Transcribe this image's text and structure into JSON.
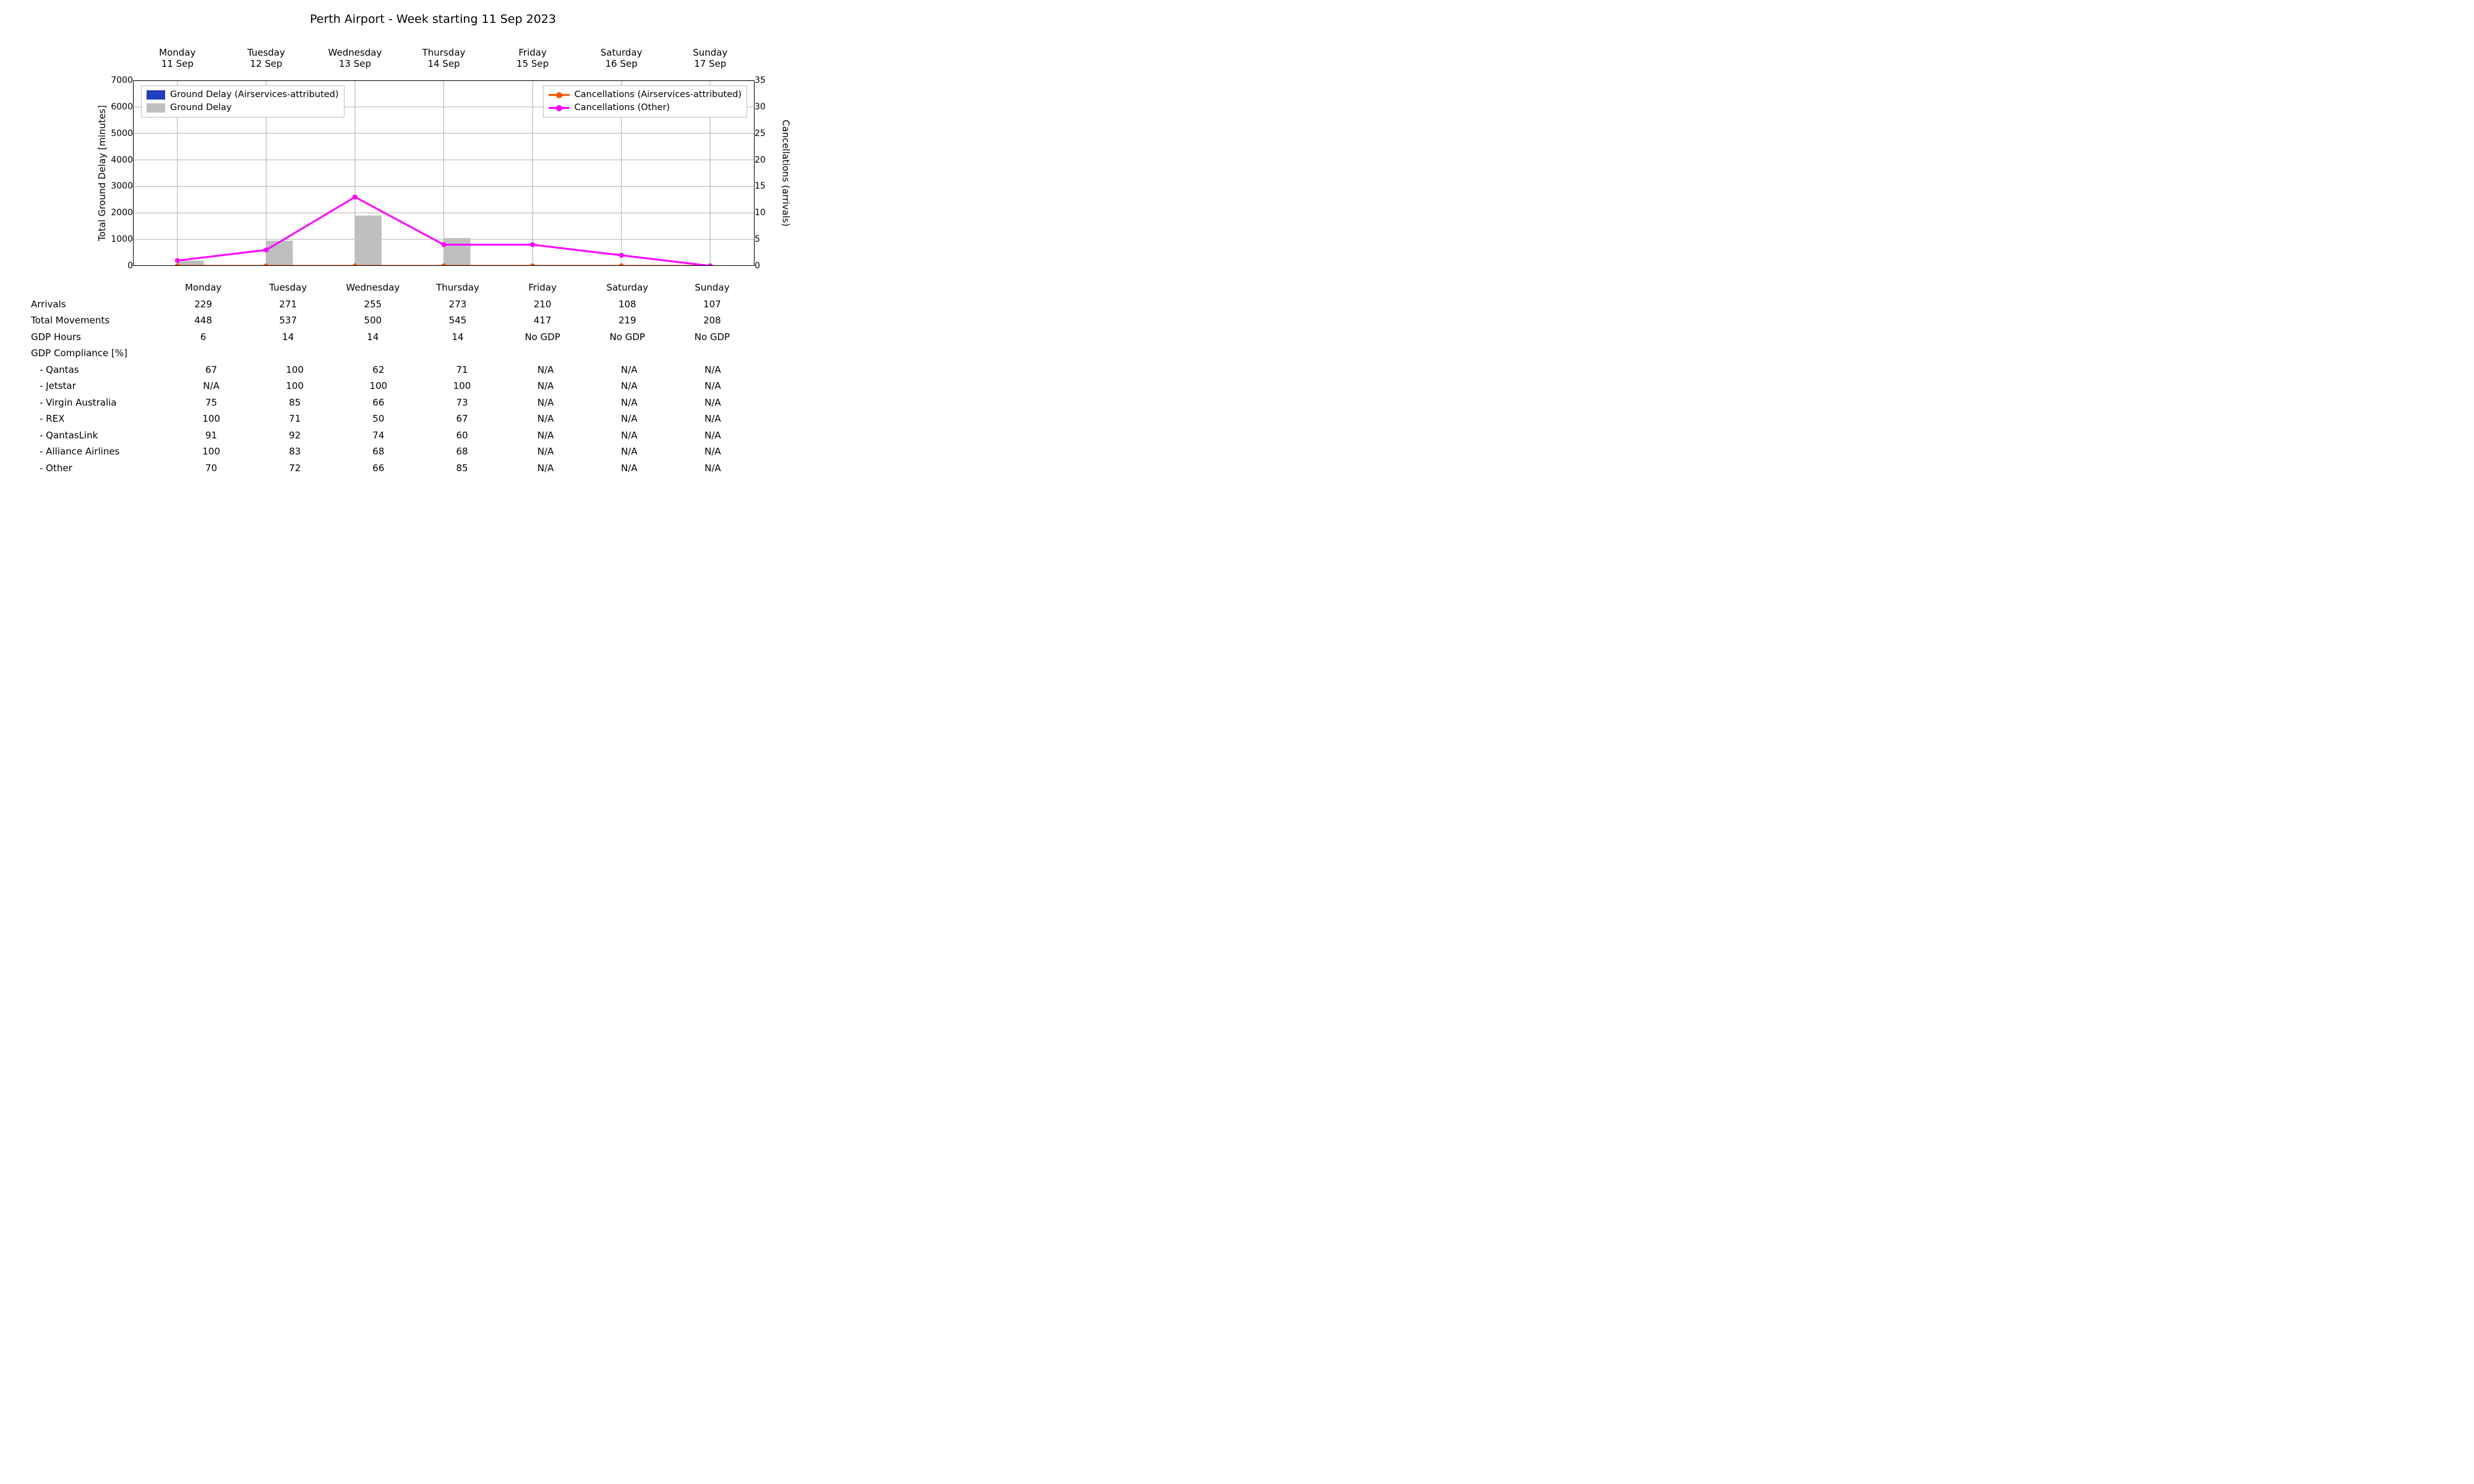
{
  "title": "Perth Airport - Week starting 11 Sep 2023",
  "chart": {
    "type": "bar+line-dual-axis",
    "background_color": "#ffffff",
    "grid_color": "#b0b0b0",
    "axis_color": "#000000",
    "days": [
      "Monday",
      "Tuesday",
      "Wednesday",
      "Thursday",
      "Friday",
      "Saturday",
      "Sunday"
    ],
    "top_dates_line2": [
      "11 Sep",
      "12 Sep",
      "13 Sep",
      "14 Sep",
      "15 Sep",
      "16 Sep",
      "17 Sep"
    ],
    "y_left": {
      "label": "Total Ground Delay [minutes]",
      "min": 0,
      "max": 7000,
      "ticks": [
        0,
        1000,
        2000,
        3000,
        4000,
        5000,
        6000,
        7000
      ],
      "fontsize": 15
    },
    "y_right": {
      "label": "Cancellations (arrivals)",
      "min": 0,
      "max": 35,
      "ticks": [
        0,
        5,
        10,
        15,
        20,
        25,
        30,
        35
      ],
      "fontsize": 15
    },
    "bars": {
      "ground_delay_airservices": {
        "label": "Ground Delay (Airservices-attributed)",
        "color": "#1f3fbf",
        "values": [
          0,
          0,
          0,
          0,
          0,
          0,
          0
        ]
      },
      "ground_delay": {
        "label": "Ground Delay",
        "color": "#bfbfbf",
        "values": [
          200,
          950,
          1900,
          1050,
          0,
          0,
          0
        ]
      },
      "bar_group_width": 0.6,
      "bar_gap": 0.0
    },
    "lines": {
      "cancel_airservices": {
        "label": "Cancellations (Airservices-attributed)",
        "color": "#ff5500",
        "linewidth": 3,
        "marker": "circle",
        "marker_size": 8,
        "values": [
          0,
          0,
          0,
          0,
          0,
          0,
          0
        ]
      },
      "cancel_other": {
        "label": "Cancellations (Other)",
        "color": "#ff00ff",
        "linewidth": 3,
        "marker": "circle",
        "marker_size": 8,
        "values": [
          1,
          3,
          13,
          4,
          4,
          2,
          0
        ]
      }
    }
  },
  "legend": {
    "left": [
      {
        "kind": "swatch",
        "color": "#1f3fbf",
        "label": "Ground Delay (Airservices-attributed)"
      },
      {
        "kind": "swatch",
        "color": "#bfbfbf",
        "label": "Ground Delay"
      }
    ],
    "right": [
      {
        "kind": "line",
        "color": "#ff5500",
        "label": "Cancellations (Airservices-attributed)"
      },
      {
        "kind": "line",
        "color": "#ff00ff",
        "label": "Cancellations (Other)"
      }
    ]
  },
  "table": {
    "header_days": [
      "Monday",
      "Tuesday",
      "Wednesday",
      "Thursday",
      "Friday",
      "Saturday",
      "Sunday"
    ],
    "rows": [
      {
        "label": "Arrivals",
        "indent": false,
        "cells": [
          "229",
          "271",
          "255",
          "273",
          "210",
          "108",
          "107"
        ]
      },
      {
        "label": "Total Movements",
        "indent": false,
        "cells": [
          "448",
          "537",
          "500",
          "545",
          "417",
          "219",
          "208"
        ]
      },
      {
        "label": "GDP Hours",
        "indent": false,
        "cells": [
          "6",
          "14",
          "14",
          "14",
          "No GDP",
          "No GDP",
          "No GDP"
        ]
      },
      {
        "label": "GDP Compliance [%]",
        "indent": false,
        "cells": [
          "",
          "",
          "",
          "",
          "",
          "",
          ""
        ]
      },
      {
        "label": "- Qantas",
        "indent": true,
        "cells": [
          "67",
          "100",
          "62",
          "71",
          "N/A",
          "N/A",
          "N/A"
        ]
      },
      {
        "label": "- Jetstar",
        "indent": true,
        "cells": [
          "N/A",
          "100",
          "100",
          "100",
          "N/A",
          "N/A",
          "N/A"
        ]
      },
      {
        "label": "- Virgin Australia",
        "indent": true,
        "cells": [
          "75",
          "85",
          "66",
          "73",
          "N/A",
          "N/A",
          "N/A"
        ]
      },
      {
        "label": "- REX",
        "indent": true,
        "cells": [
          "100",
          "71",
          "50",
          "67",
          "N/A",
          "N/A",
          "N/A"
        ]
      },
      {
        "label": "- QantasLink",
        "indent": true,
        "cells": [
          "91",
          "92",
          "74",
          "60",
          "N/A",
          "N/A",
          "N/A"
        ]
      },
      {
        "label": "- Alliance Airlines",
        "indent": true,
        "cells": [
          "100",
          "83",
          "68",
          "68",
          "N/A",
          "N/A",
          "N/A"
        ]
      },
      {
        "label": "- Other",
        "indent": true,
        "cells": [
          "70",
          "72",
          "66",
          "85",
          "N/A",
          "N/A",
          "N/A"
        ]
      }
    ]
  }
}
